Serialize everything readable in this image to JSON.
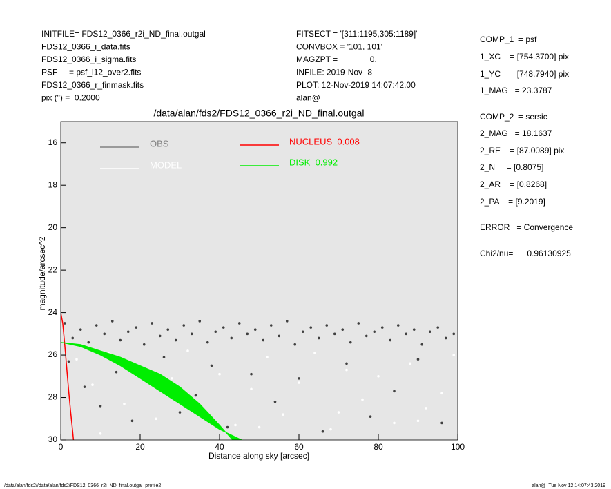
{
  "header": {
    "left": [
      "INITFILE= FDS12_0366_r2i_ND_final.outgal",
      "FDS12_0366_i_data.fits",
      "FDS12_0366_i_sigma.fits",
      "PSF     = psf_i12_over2.fits",
      "FDS12_0366_r_finmask.fits",
      "pix (\") =  0.2000"
    ],
    "middle": [
      "FITSECT = '[311:1195,305:1189]'",
      "CONVBOX = '101, 101'",
      "MAGZPT =              0.",
      "INFILE: 2019-Nov- 8",
      "PLOT: 12-Nov-2019 14:07:42.00",
      "alan@"
    ]
  },
  "params": [
    "COMP_1  = psf",
    "1_XC    = [754.3700] pix",
    "1_YC    = [748.7940] pix",
    "1_MAG   = 23.3787",
    "COMP_2  = sersic",
    "2_MAG   = 18.1637",
    "2_RE    = [87.0089] pix",
    "2_N     = [0.8075]",
    "2_AR    = [0.8268]",
    "2_PA    = [9.2019]",
    "ERROR   = Convergence",
    "Chi2/nu=      0.96130925"
  ],
  "footer": {
    "left": "/data/alan/fds2//data/alan/fds2/FDS12_0366_r2i_ND_final.outgal_profile2",
    "right": "alan@  Tue Nov 12 14:07:43 2019"
  },
  "chart_data": {
    "type": "scatter",
    "title": "/data/alan/fds2/FDS12_0366_r2i_ND_final.outgal",
    "x_label": "Distance along sky [arcsec]",
    "y_label": "magnitude/arcsec^2",
    "xlim": [
      0,
      100
    ],
    "ylim": [
      30,
      15
    ],
    "xticks": [
      0,
      20,
      40,
      60,
      80,
      100
    ],
    "yticks": [
      16,
      18,
      20,
      22,
      24,
      26,
      28,
      30
    ],
    "background": "#e6e6e6",
    "series": [
      {
        "name": "OBS",
        "kind": "points",
        "color": "#404040",
        "legend_color": "#808080",
        "x": [
          1,
          3,
          5,
          7,
          9,
          11,
          13,
          15,
          17,
          19,
          21,
          23,
          25,
          27,
          29,
          31,
          33,
          35,
          37,
          39,
          41,
          43,
          45,
          47,
          49,
          51,
          53,
          55,
          57,
          59,
          61,
          63,
          65,
          67,
          69,
          71,
          73,
          75,
          77,
          79,
          81,
          83,
          85,
          87,
          89,
          91,
          93,
          95,
          97,
          99,
          2,
          6,
          10,
          14,
          18,
          22,
          26,
          30,
          34,
          38,
          42,
          48,
          54,
          60,
          66,
          72,
          78,
          84,
          90,
          96
        ],
        "values": [
          24.5,
          25.2,
          24.8,
          25.4,
          24.6,
          25.0,
          24.4,
          25.3,
          24.9,
          24.7,
          25.5,
          24.5,
          25.1,
          24.8,
          25.3,
          24.6,
          25.0,
          24.4,
          25.4,
          24.9,
          24.7,
          25.2,
          24.5,
          25.0,
          24.8,
          25.3,
          24.6,
          25.1,
          24.4,
          25.5,
          24.9,
          24.7,
          25.2,
          24.6,
          25.0,
          24.8,
          25.4,
          24.5,
          25.1,
          24.9,
          24.7,
          25.3,
          24.6,
          25.0,
          24.8,
          25.5,
          24.9,
          24.7,
          25.2,
          25.0,
          26.3,
          27.5,
          28.4,
          26.8,
          29.1,
          27.2,
          26.1,
          28.7,
          27.9,
          26.5,
          29.4,
          26.9,
          28.2,
          27.1,
          29.6,
          26.4,
          28.9,
          27.7,
          26.2,
          29.2
        ]
      },
      {
        "name": "MODEL",
        "kind": "points",
        "color": "#ffffff",
        "x": [
          4,
          8,
          12,
          16,
          20,
          24,
          28,
          32,
          36,
          40,
          44,
          48,
          52,
          56,
          60,
          64,
          68,
          72,
          76,
          80,
          84,
          88,
          92,
          96,
          99,
          10,
          30,
          50,
          70,
          90
        ],
        "values": [
          26.2,
          27.4,
          25.9,
          28.3,
          26.6,
          29.0,
          27.1,
          25.8,
          28.6,
          26.9,
          29.3,
          27.6,
          26.1,
          28.8,
          27.3,
          25.9,
          29.5,
          26.7,
          28.1,
          27.0,
          29.2,
          26.4,
          28.5,
          27.8,
          26.0,
          29.7,
          28.0,
          29.4,
          28.7,
          29.1
        ]
      },
      {
        "name": "NUCLEUS  0.008",
        "kind": "line",
        "color": "#ff0000",
        "x": [
          0,
          0.5,
          1,
          1.5,
          2,
          2.5,
          3,
          3.2
        ],
        "values": [
          24.0,
          24.5,
          25.5,
          26.6,
          27.7,
          28.7,
          29.6,
          30.0
        ]
      },
      {
        "name": "DISK  0.992",
        "kind": "band",
        "color": "#00ee00",
        "x": [
          0,
          5,
          10,
          15,
          20,
          25,
          30,
          35,
          40,
          45.6
        ],
        "values": [
          25.4,
          25.5,
          25.8,
          26.1,
          26.5,
          26.9,
          27.5,
          28.3,
          29.3,
          30.5
        ],
        "values_faint": [
          25.4,
          25.6,
          26.0,
          26.5,
          27.1,
          27.7,
          28.3,
          28.9,
          29.5,
          30.0
        ]
      }
    ]
  }
}
